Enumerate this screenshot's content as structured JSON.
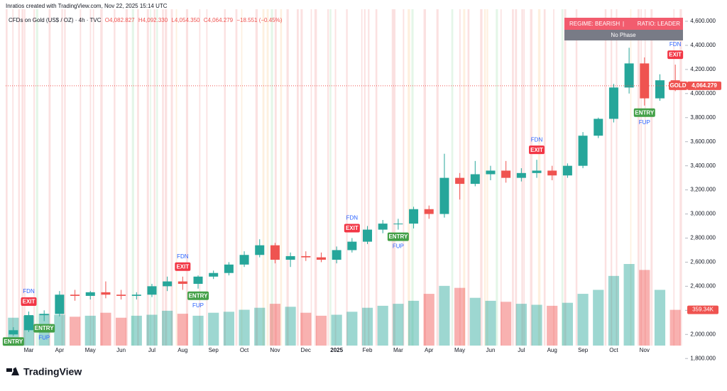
{
  "header": {
    "attribution": "Inratios created with TradingView.com, Nov 22, 2025 15:14 UTC",
    "brand": "TradingView"
  },
  "chart_data": {
    "type": "candlestick",
    "symbol_title": "CFDs on Gold (US$ / OZ) · 4h · TVC",
    "ohlc_legend": {
      "open": "O4,082.827",
      "high": "H4,092.330",
      "low": "L4,054.350",
      "close": "C4,064.279",
      "change": "−18.551 (−0.45%)"
    },
    "regime": {
      "left": "REGIME: BEARISH",
      "separator": "|",
      "right": "RATIO: LEADER",
      "phase": "No Phase"
    },
    "symbol_tag": "GOLD",
    "last_price_label": "4,064.279",
    "last_volume_label": "359.34K",
    "categories": [
      null,
      "Mar",
      null,
      "Apr",
      null,
      "May",
      null,
      "Jun",
      null,
      "Jul",
      null,
      "Aug",
      null,
      "Sep",
      null,
      "Oct",
      null,
      "Nov",
      null,
      "Dec",
      null,
      "2025",
      null,
      "Feb",
      null,
      "Mar",
      null,
      "Apr",
      null,
      "May",
      null,
      "Jun",
      null,
      "Jul",
      null,
      "Aug",
      null,
      "Sep",
      null,
      "Oct",
      null,
      "Nov",
      null,
      null
    ],
    "open": [
      2000,
      2035,
      2160,
      2170,
      2330,
      2320,
      2350,
      2330,
      2320,
      2330,
      2400,
      2440,
      2420,
      2480,
      2510,
      2580,
      2660,
      2740,
      2620,
      2650,
      2640,
      2620,
      2700,
      2770,
      2870,
      2920,
      2920,
      3040,
      3000,
      3300,
      3250,
      3330,
      3360,
      3300,
      3340,
      3360,
      3320,
      3400,
      3650,
      3790,
      4050,
      4250,
      3960,
      4110
    ],
    "high": [
      2060,
      2190,
      2200,
      2360,
      2370,
      2360,
      2440,
      2370,
      2350,
      2420,
      2480,
      2480,
      2490,
      2530,
      2600,
      2690,
      2790,
      2760,
      2680,
      2690,
      2680,
      2730,
      2800,
      2900,
      2950,
      2960,
      3060,
      3070,
      3500,
      3340,
      3440,
      3400,
      3440,
      3380,
      3450,
      3400,
      3420,
      3680,
      3800,
      4080,
      4380,
      4300,
      4160,
      4240
    ],
    "low": [
      1990,
      2020,
      2110,
      2150,
      2280,
      2290,
      2300,
      2290,
      2290,
      2310,
      2360,
      2370,
      2380,
      2460,
      2490,
      2560,
      2640,
      2590,
      2560,
      2610,
      2600,
      2590,
      2680,
      2750,
      2840,
      2870,
      2880,
      2960,
      2970,
      3120,
      3230,
      3280,
      3260,
      3270,
      3300,
      3280,
      3300,
      3380,
      3630,
      3760,
      4000,
      3900,
      3940,
      4020
    ],
    "close": [
      2035,
      2160,
      2170,
      2330,
      2320,
      2350,
      2330,
      2320,
      2330,
      2400,
      2440,
      2420,
      2480,
      2510,
      2580,
      2660,
      2740,
      2620,
      2650,
      2640,
      2620,
      2700,
      2770,
      2870,
      2920,
      2920,
      3040,
      3000,
      3300,
      3250,
      3330,
      3360,
      3300,
      3340,
      3360,
      3320,
      3400,
      3650,
      3790,
      4050,
      4250,
      3960,
      4110,
      4064.279
    ],
    "volume": [
      280000,
      300000,
      320000,
      310000,
      290000,
      300000,
      330000,
      280000,
      300000,
      310000,
      350000,
      320000,
      300000,
      330000,
      340000,
      360000,
      380000,
      420000,
      390000,
      330000,
      300000,
      310000,
      340000,
      380000,
      400000,
      420000,
      450000,
      520000,
      600000,
      580000,
      480000,
      450000,
      440000,
      420000,
      410000,
      400000,
      430000,
      520000,
      560000,
      700000,
      820000,
      760000,
      560000,
      359340
    ],
    "up_color": "#26a69a",
    "down_color": "#ef5350",
    "ylim": [
      1760,
      4700
    ],
    "yticks": [
      {
        "value": 1800,
        "label": "1,800.000"
      },
      {
        "value": 2000,
        "label": "2,000.000"
      },
      {
        "value": 2200,
        "label": "2,200.000"
      },
      {
        "value": 2400,
        "label": "2,400.000"
      },
      {
        "value": 2600,
        "label": "2,600.000"
      },
      {
        "value": 2800,
        "label": "2,800.000"
      },
      {
        "value": 3000,
        "label": "3,000.000"
      },
      {
        "value": 3200,
        "label": "3,200.000"
      },
      {
        "value": 3400,
        "label": "3,400.000"
      },
      {
        "value": 3600,
        "label": "3,600.000"
      },
      {
        "value": 3800,
        "label": "3,800.000"
      },
      {
        "value": 4000,
        "label": "4,000.000"
      },
      {
        "value": 4200,
        "label": "4,200.000"
      },
      {
        "value": 4400,
        "label": "4,400.000"
      },
      {
        "value": 4600,
        "label": "4,600.000"
      }
    ],
    "signals": [
      {
        "candle": 0,
        "price": 2000,
        "kind": "ENTRY"
      },
      {
        "candle": 1,
        "price": 2190,
        "kind": "EXIT",
        "note": "FDN"
      },
      {
        "candle": 2,
        "price": 2110,
        "kind": "ENTRY",
        "note": "FUP"
      },
      {
        "candle": 11,
        "price": 2480,
        "kind": "EXIT",
        "note": "FDN"
      },
      {
        "candle": 12,
        "price": 2380,
        "kind": "ENTRY",
        "note": "FUP"
      },
      {
        "candle": 22,
        "price": 2800,
        "kind": "EXIT",
        "note": "FDN"
      },
      {
        "candle": 25,
        "price": 2870,
        "kind": "ENTRY",
        "note": "FUP"
      },
      {
        "candle": 34,
        "price": 3450,
        "kind": "EXIT",
        "note": "FDN"
      },
      {
        "candle": 41,
        "price": 3900,
        "kind": "ENTRY",
        "note": "FUP"
      },
      {
        "candle": 43,
        "price": 4240,
        "kind": "EXIT",
        "note": "FDN"
      }
    ]
  }
}
